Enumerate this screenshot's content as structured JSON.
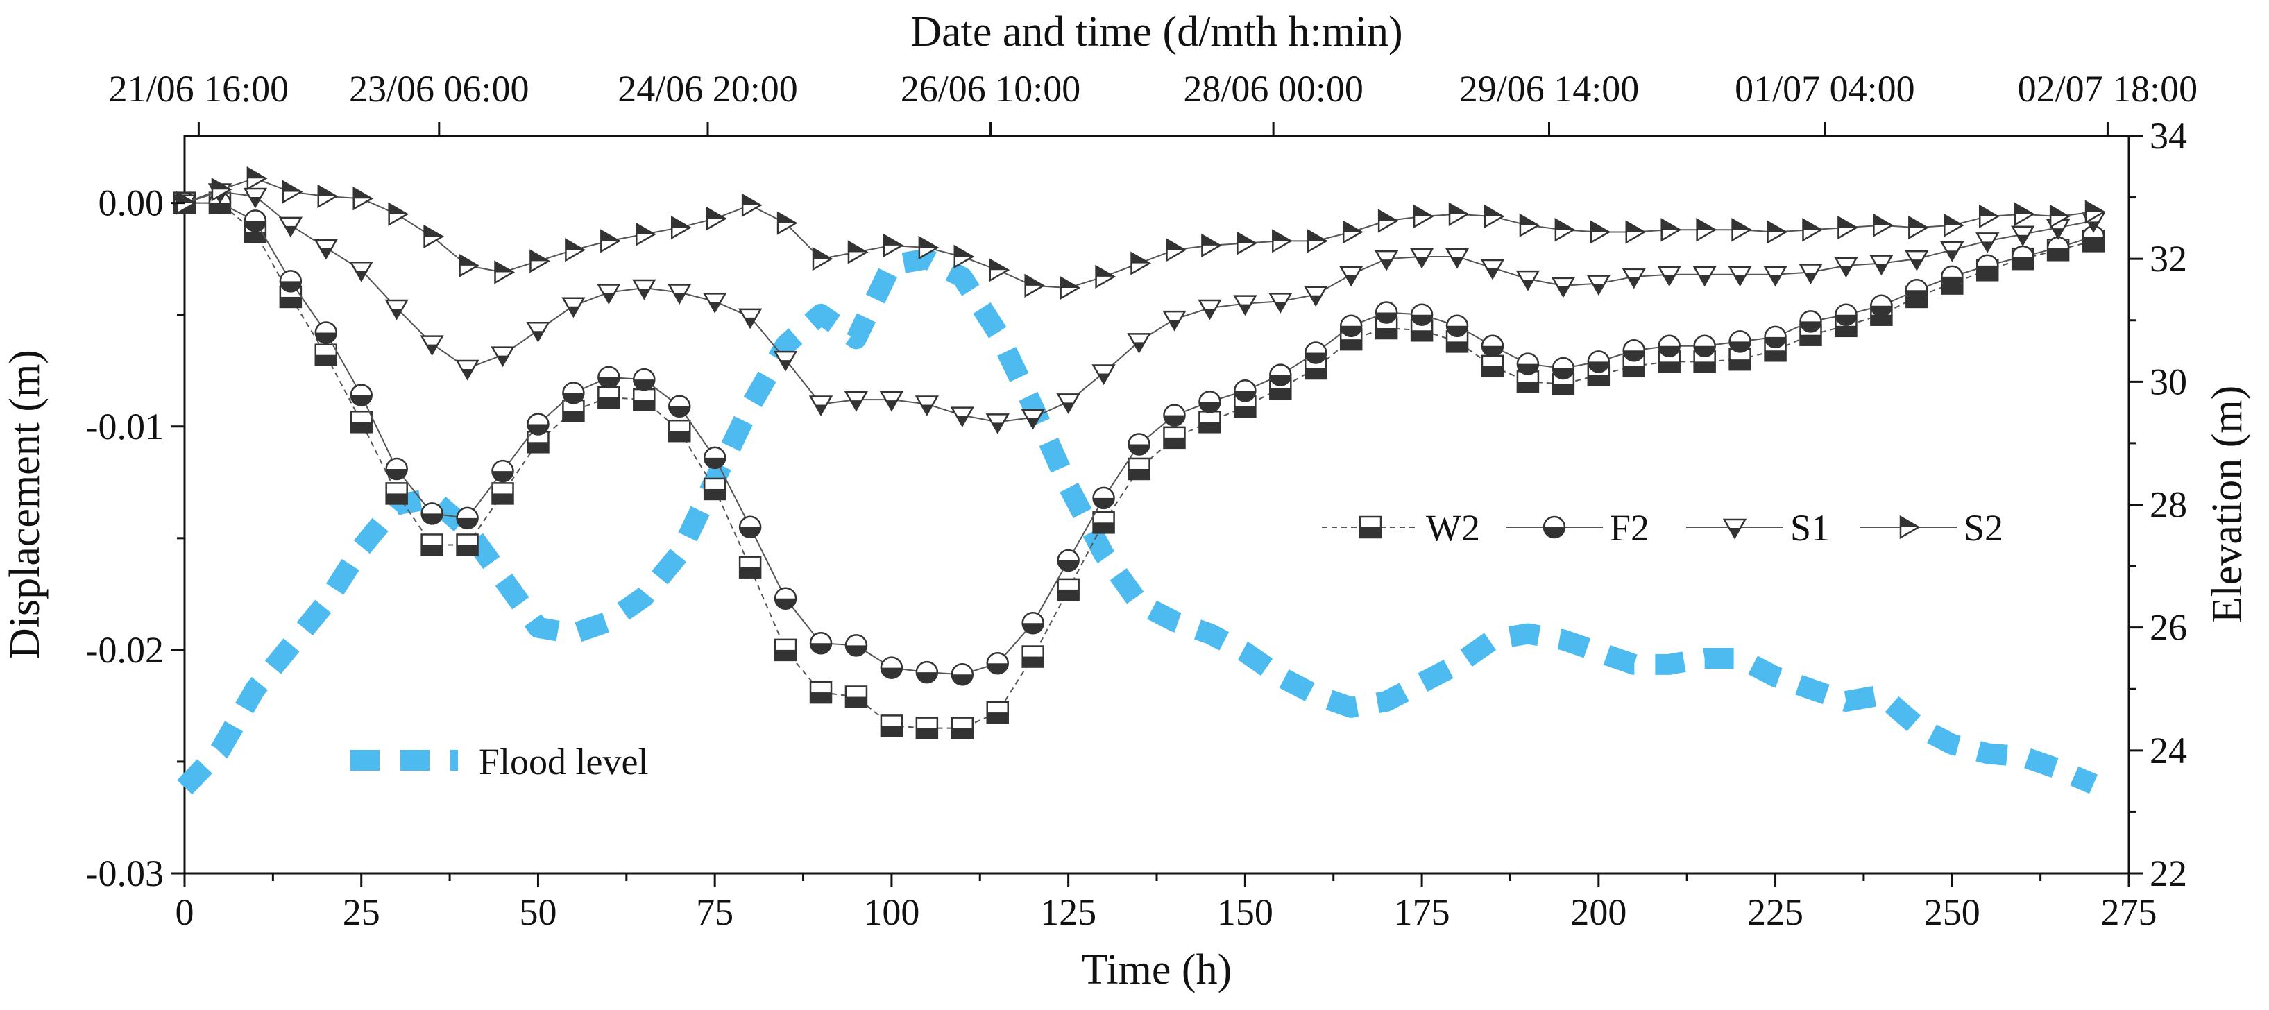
{
  "chart_data": {
    "type": "line",
    "xlabel": "Time (h)",
    "top_xlabel": "Date and time (d/mth h:min)",
    "ylabel": "Displacement (m)",
    "y2label": "Elevation (m)",
    "xlim": [
      0,
      275
    ],
    "ylim": [
      -0.03,
      0.003
    ],
    "y2lim": [
      22,
      34
    ],
    "x_ticks": [
      0,
      25,
      50,
      75,
      100,
      125,
      150,
      175,
      200,
      225,
      250,
      275
    ],
    "x_tick_labels": [
      "0",
      "25",
      "50",
      "75",
      "100",
      "125",
      "150",
      "175",
      "200",
      "225",
      "250",
      "275"
    ],
    "y_ticks": [
      0.0,
      -0.01,
      -0.02,
      -0.03
    ],
    "y_tick_labels": [
      "0.00",
      "-0.01",
      "-0.02",
      "-0.03"
    ],
    "y2_ticks": [
      22,
      24,
      26,
      28,
      30,
      32,
      34
    ],
    "y2_tick_labels": [
      "22",
      "24",
      "26",
      "28",
      "30",
      "32",
      "34"
    ],
    "top_ticks": [
      2,
      36,
      74,
      114,
      154,
      193,
      232,
      272
    ],
    "top_tick_labels": [
      "21/06 16:00",
      "23/06 06:00",
      "24/06 20:00",
      "26/06 10:00",
      "28/06 00:00",
      "29/06 14:00",
      "01/07 04:00",
      "02/07 18:00"
    ],
    "legend_position": "center-right",
    "series": [
      {
        "name": "W2",
        "marker": "square",
        "axis": "left",
        "x": [
          0,
          5,
          10,
          15,
          20,
          25,
          30,
          35,
          40,
          45,
          50,
          55,
          60,
          65,
          70,
          75,
          80,
          85,
          90,
          95,
          100,
          105,
          110,
          115,
          120,
          125,
          130,
          135,
          140,
          145,
          150,
          155,
          160,
          165,
          170,
          175,
          180,
          185,
          190,
          195,
          200,
          205,
          210,
          215,
          220,
          225,
          230,
          235,
          240,
          245,
          250,
          255,
          260,
          265,
          270
        ],
        "values": [
          0,
          0,
          -0.0013,
          -0.0042,
          -0.0068,
          -0.0098,
          -0.013,
          -0.0153,
          -0.0153,
          -0.013,
          -0.0107,
          -0.0093,
          -0.0087,
          -0.0088,
          -0.0102,
          -0.0128,
          -0.0163,
          -0.02,
          -0.0219,
          -0.0221,
          -0.0234,
          -0.0235,
          -0.0235,
          -0.0228,
          -0.0203,
          -0.0173,
          -0.0143,
          -0.0119,
          -0.0105,
          -0.0098,
          -0.0091,
          -0.0083,
          -0.0074,
          -0.0061,
          -0.0056,
          -0.0057,
          -0.0062,
          -0.0073,
          -0.008,
          -0.0081,
          -0.0077,
          -0.0073,
          -0.0071,
          -0.0071,
          -0.007,
          -0.0066,
          -0.0059,
          -0.0055,
          -0.005,
          -0.0042,
          -0.0036,
          -0.003,
          -0.0025,
          -0.0021,
          -0.0017
        ]
      },
      {
        "name": "F2",
        "marker": "circle",
        "axis": "left",
        "x": [
          0,
          5,
          10,
          15,
          20,
          25,
          30,
          35,
          40,
          45,
          50,
          55,
          60,
          65,
          70,
          75,
          80,
          85,
          90,
          95,
          100,
          105,
          110,
          115,
          120,
          125,
          130,
          135,
          140,
          145,
          150,
          155,
          160,
          165,
          170,
          175,
          180,
          185,
          190,
          195,
          200,
          205,
          210,
          215,
          220,
          225,
          230,
          235,
          240,
          245,
          250,
          255,
          260,
          265,
          270
        ],
        "values": [
          0,
          0,
          -0.0008,
          -0.0035,
          -0.0058,
          -0.0086,
          -0.0119,
          -0.0139,
          -0.0141,
          -0.012,
          -0.0099,
          -0.0085,
          -0.0078,
          -0.0079,
          -0.0091,
          -0.0114,
          -0.0145,
          -0.0177,
          -0.0197,
          -0.0198,
          -0.0208,
          -0.021,
          -0.0211,
          -0.0206,
          -0.0188,
          -0.016,
          -0.0132,
          -0.0108,
          -0.0095,
          -0.0089,
          -0.0084,
          -0.0077,
          -0.0067,
          -0.0055,
          -0.0049,
          -0.005,
          -0.0055,
          -0.0064,
          -0.0072,
          -0.0074,
          -0.0071,
          -0.0066,
          -0.0064,
          -0.0064,
          -0.0062,
          -0.006,
          -0.0053,
          -0.005,
          -0.0046,
          -0.0039,
          -0.0033,
          -0.0028,
          -0.0024,
          -0.002,
          -0.0015
        ]
      },
      {
        "name": "S1",
        "marker": "triangle-down",
        "axis": "left",
        "x": [
          0,
          5,
          10,
          15,
          20,
          25,
          30,
          35,
          40,
          45,
          50,
          55,
          60,
          65,
          70,
          75,
          80,
          85,
          90,
          95,
          100,
          105,
          110,
          115,
          120,
          125,
          130,
          135,
          140,
          145,
          150,
          155,
          160,
          165,
          170,
          175,
          180,
          185,
          190,
          195,
          200,
          205,
          210,
          215,
          220,
          225,
          230,
          235,
          240,
          245,
          250,
          255,
          260,
          265,
          270
        ],
        "values": [
          0,
          0.0005,
          0.0003,
          -0.001,
          -0.002,
          -0.003,
          -0.0047,
          -0.0063,
          -0.0074,
          -0.0068,
          -0.0057,
          -0.0046,
          -0.004,
          -0.0038,
          -0.004,
          -0.0044,
          -0.0051,
          -0.007,
          -0.009,
          -0.0088,
          -0.0088,
          -0.009,
          -0.0095,
          -0.0098,
          -0.0096,
          -0.0089,
          -0.0076,
          -0.0062,
          -0.0052,
          -0.0047,
          -0.0045,
          -0.0044,
          -0.0041,
          -0.0032,
          -0.0025,
          -0.0024,
          -0.0024,
          -0.0029,
          -0.0034,
          -0.0037,
          -0.0036,
          -0.0033,
          -0.0032,
          -0.0032,
          -0.0032,
          -0.0032,
          -0.0031,
          -0.0028,
          -0.0027,
          -0.0025,
          -0.0021,
          -0.0017,
          -0.0014,
          -0.0011,
          -0.0008
        ]
      },
      {
        "name": "S2",
        "marker": "triangle-right",
        "axis": "left",
        "x": [
          0,
          5,
          10,
          15,
          20,
          25,
          30,
          35,
          40,
          45,
          50,
          55,
          60,
          65,
          70,
          75,
          80,
          85,
          90,
          95,
          100,
          105,
          110,
          115,
          120,
          125,
          130,
          135,
          140,
          145,
          150,
          155,
          160,
          165,
          170,
          175,
          180,
          185,
          190,
          195,
          200,
          205,
          210,
          215,
          220,
          225,
          230,
          235,
          240,
          245,
          250,
          255,
          260,
          265,
          270
        ],
        "values": [
          0,
          0.0006,
          0.0011,
          0.0005,
          0.0003,
          0.0002,
          -0.0005,
          -0.0015,
          -0.0028,
          -0.0031,
          -0.0026,
          -0.0021,
          -0.0017,
          -0.0014,
          -0.0011,
          -0.0007,
          -0.0001,
          -0.0009,
          -0.0025,
          -0.0022,
          -0.0019,
          -0.002,
          -0.0024,
          -0.003,
          -0.0037,
          -0.0038,
          -0.0033,
          -0.0027,
          -0.0021,
          -0.0019,
          -0.0018,
          -0.0017,
          -0.0017,
          -0.0013,
          -0.0008,
          -0.0006,
          -0.0005,
          -0.0006,
          -0.001,
          -0.0012,
          -0.0013,
          -0.0013,
          -0.0012,
          -0.0012,
          -0.0012,
          -0.0013,
          -0.0012,
          -0.0011,
          -0.001,
          -0.0011,
          -0.001,
          -0.0006,
          -0.0005,
          -0.0006,
          -0.0004
        ]
      },
      {
        "name": "Flood level",
        "marker": "none",
        "axis": "right",
        "x": [
          0,
          5,
          10,
          15,
          20,
          25,
          30,
          35,
          40,
          45,
          50,
          55,
          60,
          65,
          70,
          75,
          80,
          85,
          90,
          95,
          100,
          105,
          110,
          115,
          120,
          125,
          130,
          135,
          140,
          145,
          150,
          155,
          160,
          165,
          170,
          175,
          180,
          185,
          190,
          195,
          200,
          205,
          210,
          215,
          220,
          225,
          230,
          235,
          240,
          245,
          250,
          255,
          260,
          265,
          270
        ],
        "values": [
          23.4,
          24.0,
          25.0,
          25.7,
          26.4,
          27.3,
          28.0,
          28.1,
          27.6,
          26.8,
          26.0,
          25.9,
          26.1,
          26.5,
          27.2,
          28.4,
          29.6,
          30.6,
          31.1,
          30.7,
          31.9,
          32.0,
          31.7,
          30.8,
          29.6,
          28.3,
          27.2,
          26.4,
          26.1,
          25.9,
          25.6,
          25.2,
          24.9,
          24.7,
          24.8,
          25.1,
          25.4,
          25.8,
          25.9,
          25.8,
          25.6,
          25.4,
          25.4,
          25.5,
          25.5,
          25.2,
          25.0,
          24.8,
          24.9,
          24.4,
          24.1,
          23.95,
          23.9,
          23.7,
          23.45
        ]
      }
    ],
    "annotations": [
      {
        "text": "Flood level",
        "placement": "lower-left"
      }
    ]
  },
  "colors": {
    "flood": "#4dbbf0",
    "ink": "#1a1a1a",
    "series_line": "#555555",
    "marker_fill": "#333333"
  }
}
